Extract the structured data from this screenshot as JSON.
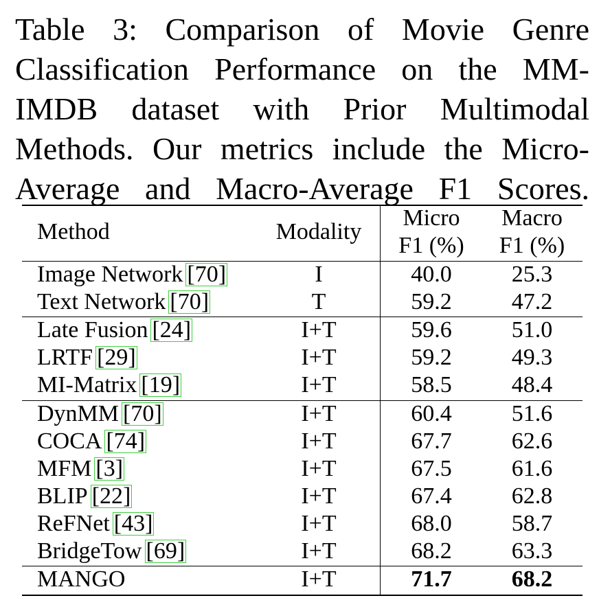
{
  "caption": {
    "lines": [
      "Table 3: Comparison of Movie Genre",
      "Classification Performance on the MM-",
      "IMDB dataset with Prior Multimodal",
      "Methods. Our metrics include the Micro-",
      "Average and Macro-Average F1 Scores."
    ]
  },
  "table": {
    "headers": {
      "method": "Method",
      "modality": "Modality",
      "micro_l1": "Micro",
      "micro_l2": "F1 (%)",
      "macro_l1": "Macro",
      "macro_l2": "F1 (%)"
    },
    "rows": [
      {
        "method": "Image Network",
        "ref": "[70]",
        "modality": "I",
        "micro": "40.0",
        "macro": "25.3"
      },
      {
        "method": "Text Network",
        "ref": "[70]",
        "modality": "T",
        "micro": "59.2",
        "macro": "47.2"
      },
      {
        "method": "Late Fusion",
        "ref": "[24]",
        "modality": "I+T",
        "micro": "59.6",
        "macro": "51.0"
      },
      {
        "method": "LRTF",
        "ref": "[29]",
        "modality": "I+T",
        "micro": "59.2",
        "macro": "49.3"
      },
      {
        "method": "MI-Matrix",
        "ref": "[19]",
        "modality": "I+T",
        "micro": "58.5",
        "macro": "48.4"
      },
      {
        "method": "DynMM",
        "ref": "[70]",
        "modality": "I+T",
        "micro": "60.4",
        "macro": "51.6"
      },
      {
        "method": "COCA",
        "ref": "[74]",
        "modality": "I+T",
        "micro": "67.7",
        "macro": "62.6"
      },
      {
        "method": "MFM",
        "ref": "[3]",
        "modality": "I+T",
        "micro": "67.5",
        "macro": "61.6"
      },
      {
        "method": "BLIP",
        "ref": "[22]",
        "modality": "I+T",
        "micro": "67.4",
        "macro": "62.8"
      },
      {
        "method": "ReFNet",
        "ref": "[43]",
        "modality": "I+T",
        "micro": "68.0",
        "macro": "58.7"
      },
      {
        "method": "BridgeTow",
        "ref": "[69]",
        "modality": "I+T",
        "micro": "68.2",
        "macro": "63.3"
      },
      {
        "method": "MANGO",
        "ref": "",
        "modality": "I+T",
        "micro": "71.7",
        "macro": "68.2"
      }
    ]
  }
}
